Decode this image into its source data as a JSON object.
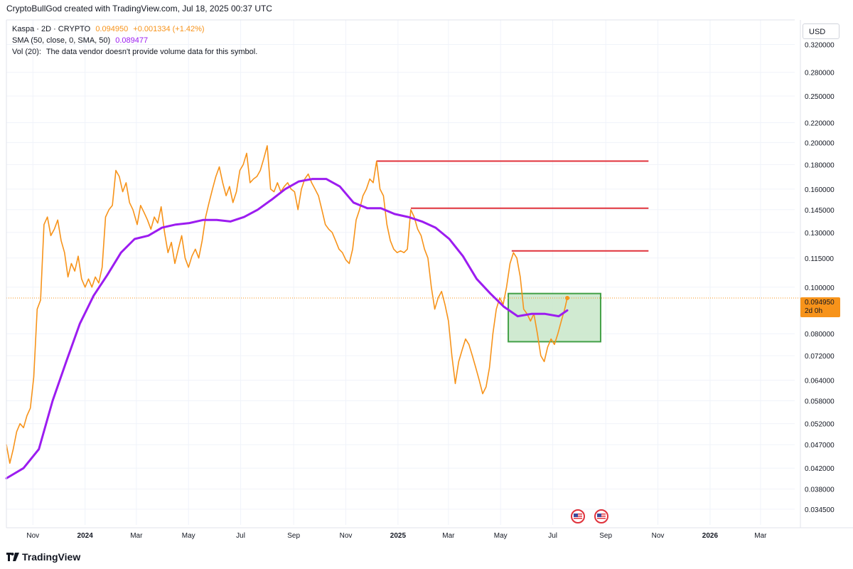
{
  "header": {
    "text": "CryptoBullGod created with TradingView.com, Jul 18, 2025 00:37 UTC"
  },
  "legend": {
    "symbol": "Kaspa · 2D · CRYPTO",
    "last": "0.094950",
    "change": "+0.001334 (+1.42%)",
    "sma_label": "SMA (50, close, 0, SMA, 50)",
    "sma_value": "0.089477",
    "vol_label": "Vol (20):",
    "vol_text": "The data vendor doesn't provide volume data for this symbol."
  },
  "currency": "USD",
  "last_price_tag": {
    "price": "0.094950",
    "countdown": "2d 0h"
  },
  "footer": {
    "brand": "TradingView"
  },
  "colors": {
    "price": "#f7931a",
    "sma": "#9c1cf0",
    "resistance": "#e0323b",
    "zone_fill": "#c8e6c9",
    "zone_border": "#43a047",
    "grid": "#f0f3fa"
  },
  "chart_data": {
    "type": "line",
    "scale": "log",
    "ylim": [
      0.032,
      0.36
    ],
    "y_ticks": [
      "0.320000",
      "0.280000",
      "0.250000",
      "0.220000",
      "0.200000",
      "0.180000",
      "0.160000",
      "0.145000",
      "0.130000",
      "0.115000",
      "0.100000",
      "0.080000",
      "0.072000",
      "0.064000",
      "0.058000",
      "0.052000",
      "0.047000",
      "0.042000",
      "0.038000",
      "0.034500"
    ],
    "x_range": [
      "2023-10-01",
      "2026-04-10"
    ],
    "x_ticks": [
      {
        "date": "2023-11-01",
        "label": "Nov",
        "bold": false
      },
      {
        "date": "2024-01-01",
        "label": "2024",
        "bold": true
      },
      {
        "date": "2024-03-01",
        "label": "Mar",
        "bold": false
      },
      {
        "date": "2024-05-01",
        "label": "May",
        "bold": false
      },
      {
        "date": "2024-07-01",
        "label": "Jul",
        "bold": false
      },
      {
        "date": "2024-09-01",
        "label": "Sep",
        "bold": false
      },
      {
        "date": "2024-11-01",
        "label": "Nov",
        "bold": false
      },
      {
        "date": "2025-01-01",
        "label": "2025",
        "bold": true
      },
      {
        "date": "2025-03-01",
        "label": "Mar",
        "bold": false
      },
      {
        "date": "2025-05-01",
        "label": "May",
        "bold": false
      },
      {
        "date": "2025-07-01",
        "label": "Jul",
        "bold": false
      },
      {
        "date": "2025-09-01",
        "label": "Sep",
        "bold": false
      },
      {
        "date": "2025-11-01",
        "label": "Nov",
        "bold": false
      },
      {
        "date": "2026-01-01",
        "label": "2026",
        "bold": true
      },
      {
        "date": "2026-03-01",
        "label": "Mar",
        "bold": false
      }
    ],
    "series": [
      {
        "name": "Kaspa",
        "color": "#f7931a",
        "points": [
          [
            "2023-10-01",
            0.047
          ],
          [
            "2023-10-05",
            0.043
          ],
          [
            "2023-10-09",
            0.046
          ],
          [
            "2023-10-13",
            0.05
          ],
          [
            "2023-10-17",
            0.052
          ],
          [
            "2023-10-21",
            0.051
          ],
          [
            "2023-10-25",
            0.054
          ],
          [
            "2023-10-29",
            0.056
          ],
          [
            "2023-11-02",
            0.065
          ],
          [
            "2023-11-06",
            0.09
          ],
          [
            "2023-11-10",
            0.094
          ],
          [
            "2023-11-14",
            0.135
          ],
          [
            "2023-11-18",
            0.14
          ],
          [
            "2023-11-22",
            0.128
          ],
          [
            "2023-11-26",
            0.132
          ],
          [
            "2023-11-30",
            0.138
          ],
          [
            "2023-12-04",
            0.125
          ],
          [
            "2023-12-08",
            0.118
          ],
          [
            "2023-12-12",
            0.105
          ],
          [
            "2023-12-16",
            0.112
          ],
          [
            "2023-12-20",
            0.108
          ],
          [
            "2023-12-24",
            0.116
          ],
          [
            "2023-12-28",
            0.104
          ],
          [
            "2024-01-01",
            0.1
          ],
          [
            "2024-01-05",
            0.104
          ],
          [
            "2024-01-09",
            0.1
          ],
          [
            "2024-01-13",
            0.105
          ],
          [
            "2024-01-17",
            0.102
          ],
          [
            "2024-01-21",
            0.11
          ],
          [
            "2024-01-25",
            0.14
          ],
          [
            "2024-01-29",
            0.145
          ],
          [
            "2024-02-02",
            0.148
          ],
          [
            "2024-02-06",
            0.175
          ],
          [
            "2024-02-10",
            0.17
          ],
          [
            "2024-02-14",
            0.158
          ],
          [
            "2024-02-18",
            0.165
          ],
          [
            "2024-02-22",
            0.15
          ],
          [
            "2024-02-26",
            0.145
          ],
          [
            "2024-03-02",
            0.135
          ],
          [
            "2024-03-06",
            0.148
          ],
          [
            "2024-03-10",
            0.143
          ],
          [
            "2024-03-14",
            0.138
          ],
          [
            "2024-03-18",
            0.132
          ],
          [
            "2024-03-22",
            0.14
          ],
          [
            "2024-03-26",
            0.136
          ],
          [
            "2024-03-30",
            0.147
          ],
          [
            "2024-04-03",
            0.13
          ],
          [
            "2024-04-07",
            0.118
          ],
          [
            "2024-04-11",
            0.124
          ],
          [
            "2024-04-15",
            0.112
          ],
          [
            "2024-04-19",
            0.12
          ],
          [
            "2024-04-23",
            0.128
          ],
          [
            "2024-04-27",
            0.115
          ],
          [
            "2024-05-01",
            0.11
          ],
          [
            "2024-05-05",
            0.116
          ],
          [
            "2024-05-09",
            0.12
          ],
          [
            "2024-05-13",
            0.115
          ],
          [
            "2024-05-17",
            0.125
          ],
          [
            "2024-05-21",
            0.14
          ],
          [
            "2024-05-25",
            0.15
          ],
          [
            "2024-05-29",
            0.16
          ],
          [
            "2024-06-02",
            0.17
          ],
          [
            "2024-06-06",
            0.178
          ],
          [
            "2024-06-10",
            0.165
          ],
          [
            "2024-06-14",
            0.155
          ],
          [
            "2024-06-18",
            0.162
          ],
          [
            "2024-06-22",
            0.15
          ],
          [
            "2024-06-26",
            0.158
          ],
          [
            "2024-06-30",
            0.175
          ],
          [
            "2024-07-04",
            0.18
          ],
          [
            "2024-07-08",
            0.19
          ],
          [
            "2024-07-12",
            0.165
          ],
          [
            "2024-07-16",
            0.168
          ],
          [
            "2024-07-20",
            0.17
          ],
          [
            "2024-07-24",
            0.175
          ],
          [
            "2024-07-28",
            0.185
          ],
          [
            "2024-08-01",
            0.197
          ],
          [
            "2024-08-05",
            0.16
          ],
          [
            "2024-08-09",
            0.158
          ],
          [
            "2024-08-13",
            0.165
          ],
          [
            "2024-08-17",
            0.158
          ],
          [
            "2024-08-21",
            0.162
          ],
          [
            "2024-08-25",
            0.165
          ],
          [
            "2024-08-29",
            0.16
          ],
          [
            "2024-09-02",
            0.158
          ],
          [
            "2024-09-06",
            0.145
          ],
          [
            "2024-09-10",
            0.16
          ],
          [
            "2024-09-14",
            0.168
          ],
          [
            "2024-09-18",
            0.172
          ],
          [
            "2024-09-22",
            0.165
          ],
          [
            "2024-09-26",
            0.16
          ],
          [
            "2024-09-30",
            0.155
          ],
          [
            "2024-10-04",
            0.145
          ],
          [
            "2024-10-08",
            0.135
          ],
          [
            "2024-10-12",
            0.132
          ],
          [
            "2024-10-16",
            0.13
          ],
          [
            "2024-10-20",
            0.125
          ],
          [
            "2024-10-24",
            0.12
          ],
          [
            "2024-10-28",
            0.118
          ],
          [
            "2024-11-01",
            0.114
          ],
          [
            "2024-11-05",
            0.112
          ],
          [
            "2024-11-09",
            0.12
          ],
          [
            "2024-11-13",
            0.138
          ],
          [
            "2024-11-17",
            0.145
          ],
          [
            "2024-11-21",
            0.155
          ],
          [
            "2024-11-25",
            0.16
          ],
          [
            "2024-11-29",
            0.168
          ],
          [
            "2024-12-03",
            0.165
          ],
          [
            "2024-12-07",
            0.183
          ],
          [
            "2024-12-11",
            0.16
          ],
          [
            "2024-12-15",
            0.155
          ],
          [
            "2024-12-19",
            0.135
          ],
          [
            "2024-12-23",
            0.125
          ],
          [
            "2024-12-27",
            0.12
          ],
          [
            "2024-12-31",
            0.118
          ],
          [
            "2025-01-04",
            0.119
          ],
          [
            "2025-01-08",
            0.118
          ],
          [
            "2025-01-12",
            0.12
          ],
          [
            "2025-01-16",
            0.145
          ],
          [
            "2025-01-20",
            0.14
          ],
          [
            "2025-01-24",
            0.132
          ],
          [
            "2025-01-28",
            0.128
          ],
          [
            "2025-02-01",
            0.12
          ],
          [
            "2025-02-05",
            0.115
          ],
          [
            "2025-02-09",
            0.1
          ],
          [
            "2025-02-13",
            0.09
          ],
          [
            "2025-02-17",
            0.095
          ],
          [
            "2025-02-21",
            0.098
          ],
          [
            "2025-02-25",
            0.092
          ],
          [
            "2025-03-01",
            0.085
          ],
          [
            "2025-03-05",
            0.072
          ],
          [
            "2025-03-09",
            0.063
          ],
          [
            "2025-03-13",
            0.07
          ],
          [
            "2025-03-17",
            0.074
          ],
          [
            "2025-03-21",
            0.078
          ],
          [
            "2025-03-25",
            0.076
          ],
          [
            "2025-03-29",
            0.072
          ],
          [
            "2025-04-02",
            0.068
          ],
          [
            "2025-04-06",
            0.064
          ],
          [
            "2025-04-10",
            0.06
          ],
          [
            "2025-04-14",
            0.062
          ],
          [
            "2025-04-18",
            0.068
          ],
          [
            "2025-04-22",
            0.08
          ],
          [
            "2025-04-26",
            0.09
          ],
          [
            "2025-04-30",
            0.095
          ],
          [
            "2025-05-04",
            0.092
          ],
          [
            "2025-05-08",
            0.1
          ],
          [
            "2025-05-12",
            0.112
          ],
          [
            "2025-05-16",
            0.118
          ],
          [
            "2025-05-20",
            0.115
          ],
          [
            "2025-05-24",
            0.105
          ],
          [
            "2025-05-28",
            0.09
          ],
          [
            "2025-06-01",
            0.088
          ],
          [
            "2025-06-05",
            0.085
          ],
          [
            "2025-06-09",
            0.088
          ],
          [
            "2025-06-13",
            0.08
          ],
          [
            "2025-06-17",
            0.072
          ],
          [
            "2025-06-21",
            0.07
          ],
          [
            "2025-06-25",
            0.075
          ],
          [
            "2025-06-29",
            0.078
          ],
          [
            "2025-07-03",
            0.076
          ],
          [
            "2025-07-07",
            0.08
          ],
          [
            "2025-07-11",
            0.085
          ],
          [
            "2025-07-15",
            0.09
          ],
          [
            "2025-07-18",
            0.09495
          ]
        ]
      },
      {
        "name": "SMA (50, close, 0, SMA, 50)",
        "color": "#9c1cf0",
        "points": [
          [
            "2023-10-01",
            0.04
          ],
          [
            "2023-10-21",
            0.042
          ],
          [
            "2023-11-08",
            0.046
          ],
          [
            "2023-11-24",
            0.058
          ],
          [
            "2023-12-10",
            0.07
          ],
          [
            "2023-12-26",
            0.084
          ],
          [
            "2024-01-11",
            0.096
          ],
          [
            "2024-01-27",
            0.106
          ],
          [
            "2024-02-12",
            0.118
          ],
          [
            "2024-02-28",
            0.126
          ],
          [
            "2024-03-15",
            0.128
          ],
          [
            "2024-03-31",
            0.133
          ],
          [
            "2024-04-16",
            0.135
          ],
          [
            "2024-05-02",
            0.136
          ],
          [
            "2024-05-18",
            0.138
          ],
          [
            "2024-06-03",
            0.138
          ],
          [
            "2024-06-19",
            0.137
          ],
          [
            "2024-07-05",
            0.14
          ],
          [
            "2024-07-21",
            0.145
          ],
          [
            "2024-08-06",
            0.152
          ],
          [
            "2024-08-22",
            0.16
          ],
          [
            "2024-09-07",
            0.166
          ],
          [
            "2024-09-23",
            0.168
          ],
          [
            "2024-10-09",
            0.168
          ],
          [
            "2024-10-25",
            0.162
          ],
          [
            "2024-11-10",
            0.15
          ],
          [
            "2024-11-26",
            0.146
          ],
          [
            "2024-12-12",
            0.146
          ],
          [
            "2024-12-28",
            0.142
          ],
          [
            "2025-01-13",
            0.14
          ],
          [
            "2025-01-29",
            0.137
          ],
          [
            "2025-02-14",
            0.133
          ],
          [
            "2025-03-02",
            0.126
          ],
          [
            "2025-03-18",
            0.116
          ],
          [
            "2025-04-03",
            0.104
          ],
          [
            "2025-04-19",
            0.097
          ],
          [
            "2025-05-05",
            0.091
          ],
          [
            "2025-05-21",
            0.087
          ],
          [
            "2025-06-06",
            0.088
          ],
          [
            "2025-06-22",
            0.088
          ],
          [
            "2025-07-08",
            0.087
          ],
          [
            "2025-07-18",
            0.089477
          ]
        ]
      }
    ],
    "resistance_lines": [
      {
        "price": 0.183,
        "from": "2024-12-07",
        "to": "2025-10-21"
      },
      {
        "price": 0.146,
        "from": "2025-01-16",
        "to": "2025-10-21"
      },
      {
        "price": 0.119,
        "from": "2025-05-14",
        "to": "2025-10-21"
      }
    ],
    "zone": {
      "from": "2025-05-10",
      "to": "2025-08-26",
      "high": 0.097,
      "low": 0.077
    },
    "last_price": 0.09495
  }
}
